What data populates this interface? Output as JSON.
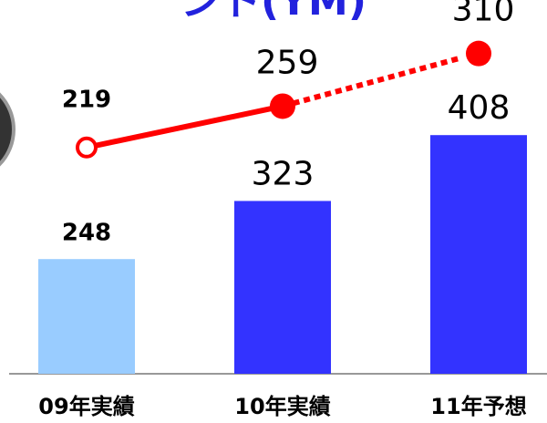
{
  "chart_data": {
    "type": "bar_line",
    "title": "ント(YM)",
    "categories": [
      "09年実績",
      "10年実績",
      "11年予想"
    ],
    "ylim": [
      100,
      580
    ],
    "y2lim": [
      0,
      360
    ],
    "series": [
      {
        "name": "bars",
        "values": [
          248,
          323,
          408
        ],
        "colors": [
          "#99ccff",
          "#3333ff",
          "#3333ff"
        ]
      },
      {
        "name": "line",
        "values": [
          219,
          259,
          310
        ],
        "color": "#ff0000",
        "axis": "y2"
      }
    ]
  }
}
